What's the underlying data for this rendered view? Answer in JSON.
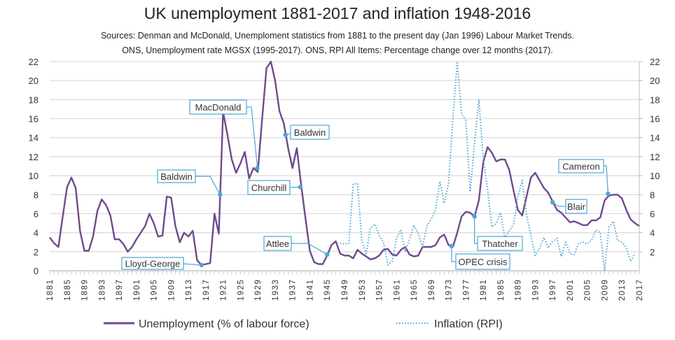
{
  "chart_data": {
    "type": "line",
    "title": "UK unemployment 1881-2017 and inflation 1948-2016",
    "subtitle_lines": [
      "Sources: Denman and McDonald, Unemploment statistics from 1881 to the present day (Jan 1996) Labour Market Trends.",
      "ONS, Unemployment rate MGSX (1995-2017). ONS, RPI All Items: Percentage change over 12 months (2017)."
    ],
    "xlabel": "",
    "ylabel": "",
    "xlim": [
      1881,
      2017
    ],
    "ylim": [
      0,
      22
    ],
    "y_ticks": [
      0,
      2,
      4,
      6,
      8,
      10,
      12,
      14,
      16,
      18,
      20,
      22
    ],
    "y2_ticks": [
      2,
      4,
      6,
      8,
      10,
      12,
      14,
      16,
      18,
      20,
      22
    ],
    "x_tick_labels": [
      "1881",
      "1885",
      "1889",
      "1893",
      "1897",
      "1901",
      "1905",
      "1909",
      "1913",
      "1917",
      "1921",
      "1925",
      "1929",
      "1933",
      "1937",
      "1941",
      "1945",
      "1949",
      "1953",
      "1957",
      "1961",
      "1965",
      "1969",
      "1973",
      "1977",
      "1981",
      "1985",
      "1989",
      "1993",
      "1997",
      "2001",
      "2005",
      "2009",
      "2013",
      "2017"
    ],
    "grid": true,
    "legend_position": "bottom",
    "series": [
      {
        "name": "Unemployment (% of labour force)",
        "color": "#6f4a8e",
        "style": "solid",
        "x_start": 1881,
        "values": [
          3.5,
          2.9,
          2.5,
          5.7,
          8.8,
          9.8,
          8.7,
          4.2,
          2.1,
          2.1,
          3.6,
          6.3,
          7.5,
          6.9,
          5.8,
          3.3,
          3.3,
          2.8,
          2.0,
          2.5,
          3.3,
          4.0,
          4.7,
          6.0,
          5.0,
          3.6,
          3.7,
          7.8,
          7.7,
          4.7,
          3.0,
          4.0,
          3.6,
          4.2,
          1.1,
          0.6,
          0.7,
          0.8,
          6.0,
          3.9,
          16.7,
          14.3,
          11.7,
          10.3,
          11.3,
          12.5,
          9.7,
          10.8,
          10.4,
          16.0,
          21.3,
          22.0,
          20.0,
          16.8,
          15.5,
          12.9,
          10.8,
          12.9,
          9.0,
          5.5,
          2.1,
          0.9,
          0.7,
          0.7,
          1.6,
          2.7,
          3.1,
          1.8,
          1.6,
          1.6,
          1.3,
          2.2,
          1.8,
          1.5,
          1.2,
          1.3,
          1.6,
          2.2,
          2.3,
          1.7,
          1.6,
          2.2,
          2.5,
          1.7,
          1.5,
          1.6,
          2.5,
          2.5,
          2.5,
          2.7,
          3.5,
          3.8,
          2.7,
          2.5,
          4.0,
          5.7,
          6.2,
          6.1,
          5.7,
          7.4,
          11.4,
          13.0,
          12.4,
          11.5,
          11.7,
          11.7,
          10.6,
          8.4,
          6.4,
          5.8,
          7.8,
          9.8,
          10.3,
          9.5,
          8.7,
          8.2,
          7.3,
          6.4,
          6.1,
          5.6,
          5.1,
          5.2,
          5.0,
          4.8,
          4.8,
          5.3,
          5.3,
          5.6,
          7.4,
          7.9,
          8.0,
          8.0,
          7.6,
          6.4,
          5.4,
          5.0,
          4.7
        ]
      },
      {
        "name": "Inflation (RPI)",
        "color": "#4aa6d6",
        "style": "dotted",
        "x_start": 1948,
        "values": [
          2.9,
          2.8,
          2.9,
          9.1,
          9.2,
          3.1,
          1.8,
          4.5,
          4.9,
          3.7,
          3.0,
          0.6,
          1.0,
          3.4,
          4.3,
          2.0,
          3.3,
          4.8,
          3.9,
          2.5,
          4.7,
          5.4,
          6.4,
          9.4,
          7.1,
          9.2,
          16.0,
          24.2,
          16.5,
          15.8,
          8.3,
          13.4,
          18.0,
          11.9,
          8.6,
          4.6,
          5.0,
          6.1,
          3.4,
          4.2,
          4.9,
          7.8,
          9.5,
          5.9,
          3.7,
          1.6,
          2.4,
          3.5,
          2.4,
          3.1,
          3.4,
          1.5,
          3.0,
          1.8,
          1.7,
          2.9,
          3.0,
          2.8,
          3.2,
          4.3,
          4.0,
          -0.5,
          4.6,
          5.2,
          3.2,
          3.0,
          2.4,
          1.0,
          1.8
        ]
      }
    ],
    "annotations": [
      {
        "label": "Lloyd-George",
        "year": 1916,
        "value": 0.6
      },
      {
        "label": "Baldwin",
        "year": 1920.3,
        "value": 8.0
      },
      {
        "label": "MacDonald",
        "year": 1928.9,
        "value": 10.8
      },
      {
        "label": "Baldwin",
        "year": 1935.4,
        "value": 14.3
      },
      {
        "label": "Churchill",
        "year": 1938.8,
        "value": 8.8
      },
      {
        "label": "Attlee",
        "year": 1945,
        "value": 1.7
      },
      {
        "label": "OPEC crisis",
        "year": 1973.7,
        "value": 2.6
      },
      {
        "label": "Thatcher",
        "year": 1979,
        "value": 5.7
      },
      {
        "label": "Blair",
        "year": 1997,
        "value": 7.2
      },
      {
        "label": "Cameron",
        "year": 2009.8,
        "value": 8.1
      }
    ],
    "annotation_color": "#4aa6d6"
  }
}
